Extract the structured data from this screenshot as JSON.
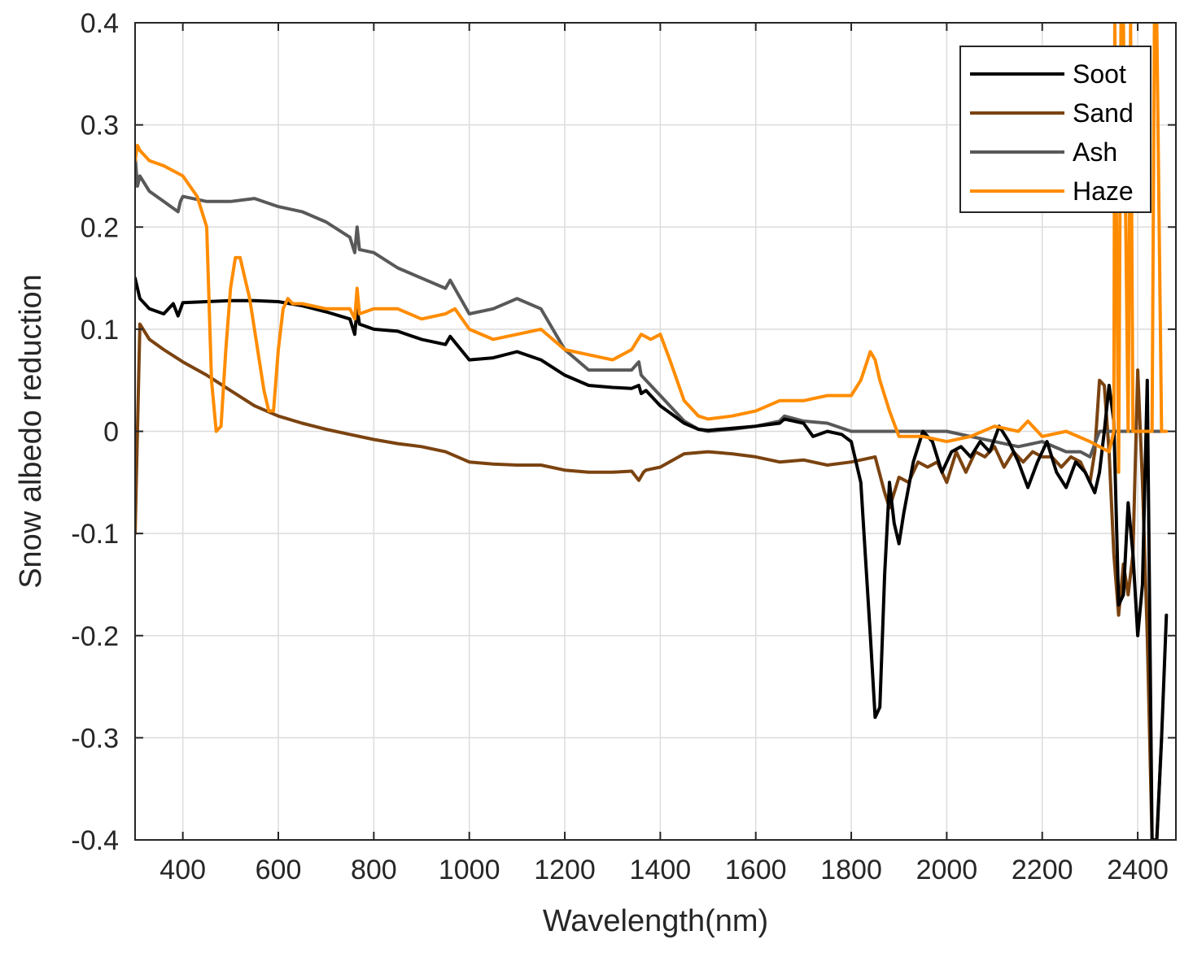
{
  "chart_data": {
    "type": "line",
    "xlabel": "Wavelength(nm)",
    "ylabel": "Snow albedo reduction",
    "xlim": [
      300,
      2480
    ],
    "ylim": [
      -0.4,
      0.4
    ],
    "xticks": [
      400,
      600,
      800,
      1000,
      1200,
      1400,
      1600,
      1800,
      2000,
      2200,
      2400
    ],
    "yticks": [
      0.4,
      0.3,
      0.2,
      0.1,
      0,
      -0.1,
      -0.2,
      -0.3,
      -0.4
    ],
    "ytick_labels": [
      "0.4",
      "0.3",
      "0.2",
      "0.1",
      "0",
      "-0.1",
      "-0.2",
      "-0.3",
      "-0.4"
    ],
    "grid": true,
    "legend_position": "top-right",
    "series": [
      {
        "name": "Soot",
        "color": "#000000",
        "x": [
          300,
          310,
          330,
          360,
          380,
          390,
          400,
          450,
          500,
          550,
          600,
          650,
          700,
          750,
          760,
          765,
          770,
          800,
          850,
          900,
          950,
          960,
          1000,
          1050,
          1100,
          1150,
          1200,
          1250,
          1300,
          1340,
          1355,
          1360,
          1370,
          1400,
          1450,
          1480,
          1500,
          1550,
          1600,
          1650,
          1660,
          1700,
          1720,
          1750,
          1780,
          1800,
          1820,
          1840,
          1850,
          1860,
          1870,
          1880,
          1890,
          1900,
          1910,
          1930,
          1950,
          1970,
          1990,
          2010,
          2030,
          2050,
          2070,
          2090,
          2110,
          2130,
          2150,
          2170,
          2190,
          2210,
          2230,
          2250,
          2270,
          2290,
          2310,
          2320,
          2330,
          2340,
          2350,
          2360,
          2370,
          2380,
          2390,
          2400,
          2410,
          2420,
          2430,
          2440,
          2450,
          2460
        ],
        "y": [
          0.15,
          0.13,
          0.12,
          0.115,
          0.125,
          0.113,
          0.126,
          0.127,
          0.128,
          0.128,
          0.127,
          0.123,
          0.117,
          0.11,
          0.095,
          0.12,
          0.105,
          0.1,
          0.098,
          0.09,
          0.085,
          0.093,
          0.07,
          0.072,
          0.078,
          0.07,
          0.055,
          0.045,
          0.043,
          0.042,
          0.045,
          0.037,
          0.04,
          0.025,
          0.008,
          0.002,
          0.001,
          0.003,
          0.005,
          0.008,
          0.012,
          0.008,
          -0.005,
          0.0,
          -0.003,
          -0.01,
          -0.05,
          -0.2,
          -0.28,
          -0.27,
          -0.14,
          -0.05,
          -0.09,
          -0.11,
          -0.08,
          -0.03,
          0.0,
          -0.01,
          -0.04,
          -0.02,
          -0.015,
          -0.025,
          -0.01,
          -0.02,
          0.005,
          -0.01,
          -0.03,
          -0.055,
          -0.03,
          -0.01,
          -0.04,
          -0.055,
          -0.03,
          -0.04,
          -0.06,
          -0.04,
          0.0,
          0.045,
          0.01,
          -0.17,
          -0.16,
          -0.07,
          -0.12,
          -0.2,
          -0.15,
          0.05,
          -0.4,
          -0.4,
          -0.3,
          -0.18
        ]
      },
      {
        "name": "Sand",
        "color": "#7b4310",
        "x": [
          300,
          305,
          310,
          330,
          360,
          400,
          450,
          500,
          550,
          600,
          650,
          700,
          750,
          800,
          850,
          900,
          950,
          1000,
          1050,
          1100,
          1150,
          1200,
          1250,
          1300,
          1340,
          1355,
          1365,
          1370,
          1400,
          1450,
          1500,
          1550,
          1600,
          1650,
          1700,
          1750,
          1800,
          1850,
          1870,
          1880,
          1900,
          1920,
          1940,
          1960,
          1980,
          2000,
          2020,
          2040,
          2060,
          2080,
          2100,
          2120,
          2140,
          2160,
          2180,
          2200,
          2220,
          2240,
          2260,
          2280,
          2300,
          2310,
          2320,
          2330,
          2340,
          2350,
          2360,
          2370,
          2380,
          2390,
          2400,
          2410,
          2420,
          2430,
          2440,
          2450
        ],
        "y": [
          -0.1,
          0.0,
          0.105,
          0.09,
          0.08,
          0.068,
          0.055,
          0.04,
          0.025,
          0.015,
          0.008,
          0.002,
          -0.003,
          -0.008,
          -0.012,
          -0.015,
          -0.02,
          -0.03,
          -0.032,
          -0.033,
          -0.033,
          -0.038,
          -0.04,
          -0.04,
          -0.039,
          -0.048,
          -0.04,
          -0.038,
          -0.035,
          -0.022,
          -0.02,
          -0.022,
          -0.025,
          -0.03,
          -0.028,
          -0.033,
          -0.03,
          -0.025,
          -0.06,
          -0.075,
          -0.045,
          -0.05,
          -0.03,
          -0.035,
          -0.03,
          -0.05,
          -0.02,
          -0.04,
          -0.02,
          -0.025,
          -0.015,
          -0.035,
          -0.02,
          -0.03,
          -0.02,
          -0.025,
          -0.025,
          -0.035,
          -0.025,
          -0.03,
          -0.05,
          -0.02,
          0.05,
          0.045,
          -0.02,
          -0.12,
          -0.18,
          -0.13,
          -0.16,
          -0.12,
          0.06,
          -0.05,
          -0.2,
          -0.4,
          -0.4,
          -0.3
        ]
      },
      {
        "name": "Ash",
        "color": "#595959",
        "x": [
          300,
          305,
          310,
          330,
          360,
          390,
          395,
          400,
          450,
          500,
          550,
          600,
          650,
          700,
          750,
          760,
          765,
          770,
          800,
          850,
          900,
          950,
          960,
          1000,
          1050,
          1100,
          1150,
          1200,
          1250,
          1300,
          1340,
          1355,
          1360,
          1370,
          1400,
          1450,
          1480,
          1500,
          1550,
          1600,
          1650,
          1660,
          1700,
          1750,
          1800,
          1850,
          1900,
          1950,
          2000,
          2050,
          2100,
          2150,
          2200,
          2250,
          2280,
          2300,
          2320,
          2340,
          2360,
          2400,
          2440,
          2450
        ],
        "y": [
          0.27,
          0.24,
          0.25,
          0.235,
          0.225,
          0.215,
          0.225,
          0.23,
          0.225,
          0.225,
          0.228,
          0.22,
          0.215,
          0.205,
          0.19,
          0.175,
          0.2,
          0.178,
          0.175,
          0.16,
          0.15,
          0.14,
          0.148,
          0.115,
          0.12,
          0.13,
          0.12,
          0.08,
          0.06,
          0.06,
          0.06,
          0.068,
          0.055,
          0.05,
          0.035,
          0.01,
          0.002,
          0.0,
          0.002,
          0.005,
          0.01,
          0.015,
          0.01,
          0.008,
          0.0,
          0.0,
          0.0,
          0.0,
          0.0,
          -0.005,
          -0.01,
          -0.015,
          -0.01,
          -0.02,
          -0.02,
          -0.025,
          0.0,
          0.0,
          0.0,
          0.0,
          0.0,
          0.0
        ]
      },
      {
        "name": "Haze",
        "color": "#ff8c00",
        "x": [
          300,
          305,
          310,
          330,
          360,
          400,
          430,
          450,
          460,
          470,
          480,
          490,
          500,
          510,
          520,
          530,
          540,
          550,
          560,
          570,
          580,
          590,
          600,
          610,
          620,
          630,
          640,
          650,
          700,
          750,
          760,
          765,
          770,
          800,
          850,
          900,
          950,
          970,
          1000,
          1050,
          1100,
          1150,
          1200,
          1250,
          1300,
          1340,
          1360,
          1380,
          1400,
          1420,
          1450,
          1480,
          1500,
          1550,
          1600,
          1650,
          1700,
          1750,
          1800,
          1820,
          1840,
          1850,
          1860,
          1880,
          1900,
          1950,
          2000,
          2050,
          2100,
          2150,
          2170,
          2200,
          2250,
          2300,
          2340,
          2350,
          2352,
          2360,
          2365,
          2370,
          2380,
          2385,
          2390,
          2400,
          2430,
          2435,
          2440,
          2450,
          2460
        ],
        "y": [
          0.265,
          0.28,
          0.275,
          0.265,
          0.26,
          0.25,
          0.23,
          0.2,
          0.05,
          0.0,
          0.005,
          0.08,
          0.14,
          0.17,
          0.17,
          0.15,
          0.13,
          0.1,
          0.07,
          0.04,
          0.02,
          0.02,
          0.08,
          0.12,
          0.13,
          0.125,
          0.125,
          0.125,
          0.12,
          0.12,
          0.11,
          0.14,
          0.115,
          0.12,
          0.12,
          0.11,
          0.115,
          0.12,
          0.1,
          0.09,
          0.095,
          0.1,
          0.08,
          0.075,
          0.07,
          0.08,
          0.095,
          0.09,
          0.095,
          0.07,
          0.03,
          0.015,
          0.012,
          0.015,
          0.02,
          0.03,
          0.03,
          0.035,
          0.035,
          0.05,
          0.078,
          0.07,
          0.05,
          0.02,
          -0.005,
          -0.005,
          -0.01,
          -0.005,
          0.005,
          0.0,
          0.01,
          -0.005,
          0.0,
          -0.01,
          -0.02,
          0.0,
          0.4,
          -0.04,
          0.4,
          0.4,
          0.0,
          0.4,
          0.0,
          0.0,
          0.0,
          0.4,
          0.4,
          0.0,
          0.0
        ]
      }
    ]
  }
}
